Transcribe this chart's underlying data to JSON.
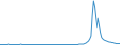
{
  "x": [
    0,
    1,
    2,
    3,
    4,
    5,
    6,
    7,
    8,
    9,
    10,
    11,
    12,
    13,
    14,
    15,
    16,
    17,
    18,
    19,
    20,
    21,
    22,
    23,
    24,
    25,
    26,
    27,
    28,
    29,
    30,
    31,
    32,
    33,
    34,
    35,
    36,
    37,
    38,
    39,
    40,
    41,
    42,
    43,
    44,
    45,
    46,
    47,
    48,
    49,
    50,
    51,
    52,
    53,
    54,
    55,
    56,
    57,
    58,
    59,
    60,
    61,
    62,
    63,
    64,
    65,
    66,
    67,
    68,
    69,
    70,
    71,
    72,
    73,
    74,
    75,
    76,
    77,
    78,
    79,
    80,
    81,
    82,
    83,
    84,
    85,
    86,
    87,
    88,
    89,
    90,
    91,
    92,
    93,
    94,
    95,
    96,
    97,
    98,
    99
  ],
  "y": [
    1,
    1,
    1,
    1,
    1,
    1,
    1,
    2,
    1,
    1,
    1,
    1,
    1,
    1,
    1,
    1,
    1,
    2,
    1,
    1,
    1,
    1,
    1,
    1,
    1,
    1,
    1,
    1,
    1,
    1,
    1,
    1,
    1,
    1,
    1,
    1,
    1,
    1,
    1,
    1,
    1,
    1,
    1,
    1,
    1,
    1,
    1,
    1,
    1,
    1,
    1,
    1,
    1,
    1,
    1,
    1,
    1,
    1,
    1,
    1,
    1,
    1,
    1,
    1,
    1,
    2,
    2,
    2,
    2,
    2,
    3,
    4,
    6,
    8,
    12,
    18,
    60,
    90,
    78,
    55,
    35,
    55,
    42,
    25,
    15,
    12,
    10,
    9,
    8,
    7,
    6,
    6,
    5,
    5,
    4,
    4,
    3,
    3,
    3,
    3
  ],
  "line_color": "#3a8fc7",
  "linewidth": 0.7,
  "background_color": "#ffffff",
  "ylim_min": 0,
  "ylim_max": 92
}
